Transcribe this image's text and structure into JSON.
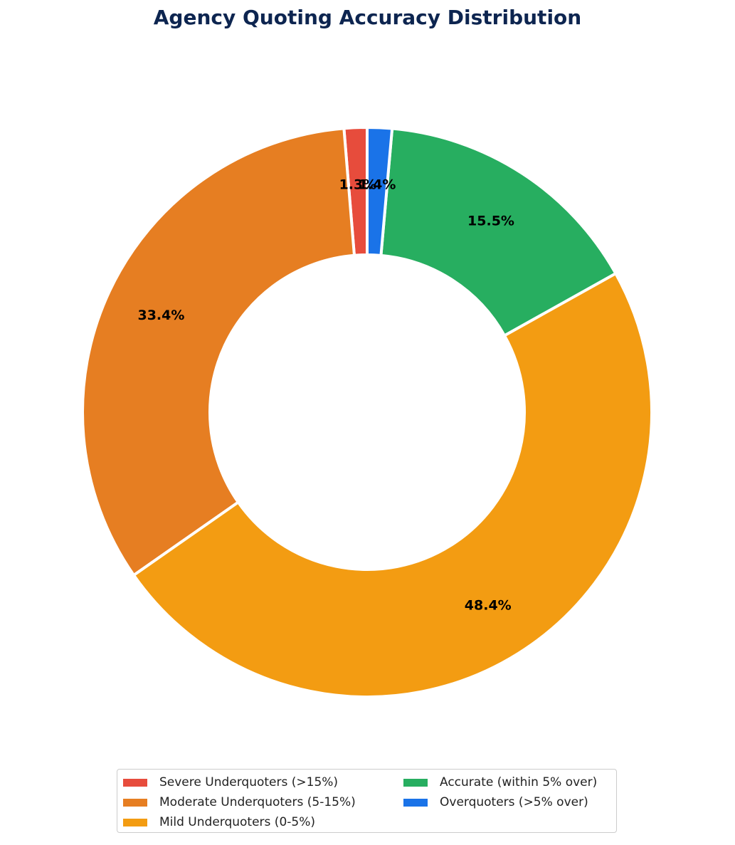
{
  "chart_data": {
    "type": "pie",
    "subtype": "donut",
    "title": "Agency Quoting Accuracy Distribution",
    "categories": [
      "Severe Underquoters (>15%)",
      "Moderate Underquoters (5-15%)",
      "Mild Underquoters (0-5%)",
      "Accurate (within 5% over)",
      "Overquoters (>5% over)"
    ],
    "values": [
      1.3,
      33.4,
      48.4,
      15.5,
      1.4
    ],
    "labels": [
      "1.3%",
      "33.4%",
      "48.4%",
      "15.5%",
      "1.4%"
    ],
    "colors": [
      "#e74c3c",
      "#e67e22",
      "#f39c12",
      "#27ae60",
      "#1a73e8"
    ],
    "start_angle": 90,
    "direction": "counterclockwise",
    "legend_position": "bottom",
    "legend_columns": 2
  },
  "legend": {
    "items": [
      {
        "label": "Severe Underquoters (>15%)",
        "color": "#e74c3c"
      },
      {
        "label": "Moderate Underquoters (5-15%)",
        "color": "#e67e22"
      },
      {
        "label": "Mild Underquoters (0-5%)",
        "color": "#f39c12"
      },
      {
        "label": "Accurate (within 5% over)",
        "color": "#27ae60"
      },
      {
        "label": "Overquoters (>5% over)",
        "color": "#1a73e8"
      }
    ]
  }
}
